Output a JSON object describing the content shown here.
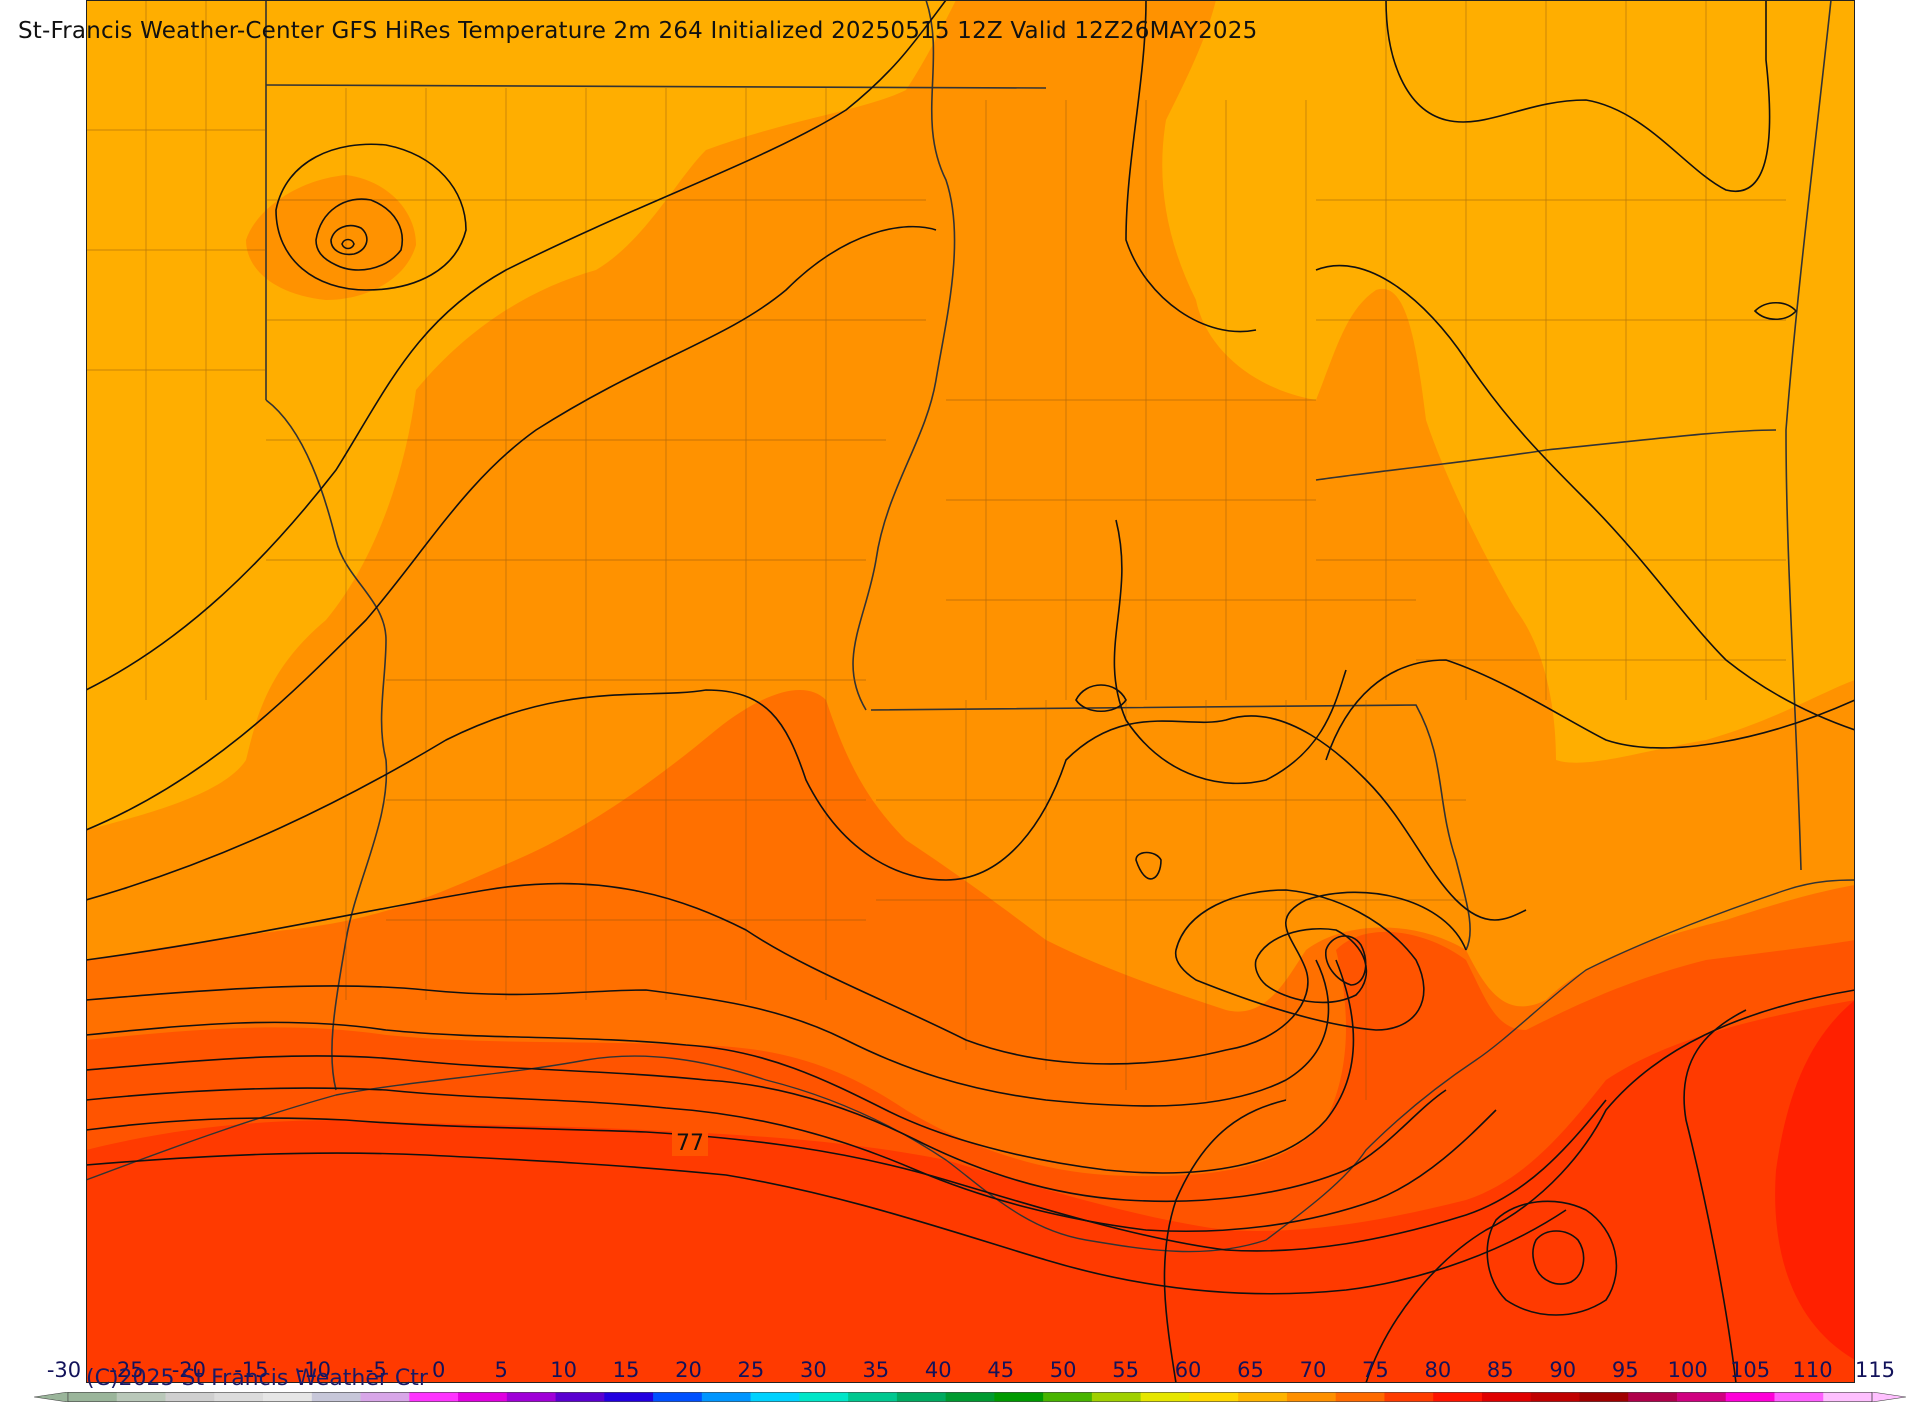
{
  "title": "St-Francis Weather-Center GFS HiRes Temperature 2m  264 Initialized 20250515 12Z Valid 12Z26MAY2025",
  "copyright": "(C)2025 St Francis Weather Ctr",
  "map": {
    "field": "Temperature 2m",
    "contour_labels": [
      {
        "text": "77"
      }
    ],
    "colors": {
      "band_65_70": "#ffae00",
      "band_70_75": "#ff9200",
      "band_75_80": "#ff7000",
      "band_80_85": "#ff5400",
      "band_85_90": "#ff3a00",
      "band_90_95": "#ff2000",
      "contour": "#111111",
      "border": "#333333"
    }
  },
  "legend": {
    "min": -30,
    "max": 115,
    "step": 5,
    "tick_labels": [
      "-30",
      "-25",
      "-20",
      "-15",
      "-10",
      "-5",
      "0",
      "5",
      "10",
      "15",
      "20",
      "25",
      "30",
      "35",
      "40",
      "45",
      "50",
      "55",
      "60",
      "65",
      "70",
      "75",
      "80",
      "85",
      "90",
      "95",
      "100",
      "105",
      "110",
      "115"
    ],
    "colors": [
      "#9ab59a",
      "#b9c8b9",
      "#cfcfcf",
      "#dcdcdc",
      "#e6e6e6",
      "#c7c7d9",
      "#d8a6e8",
      "#ff33ff",
      "#e000e0",
      "#a000d8",
      "#5a00d0",
      "#2200e0",
      "#0050ff",
      "#0095ff",
      "#00d2ff",
      "#00e6c8",
      "#00c890",
      "#00aa60",
      "#009a30",
      "#009a00",
      "#48b400",
      "#a0d000",
      "#e6e600",
      "#ffd700",
      "#ffb400",
      "#ff9000",
      "#ff6a00",
      "#ff3c00",
      "#ff1400",
      "#e00000",
      "#c00000",
      "#a00000",
      "#b0004a",
      "#d00080",
      "#ff00d8",
      "#ff60ff",
      "#ffc0ff"
    ]
  }
}
